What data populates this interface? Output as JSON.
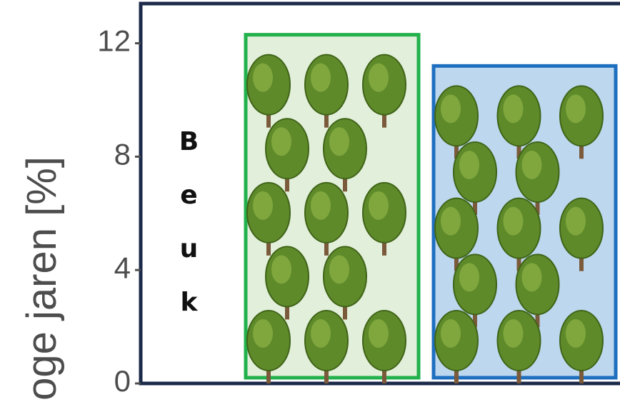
{
  "chart_data": {
    "type": "bar",
    "y_label": "oge jaren [%]",
    "annotation": "Beuk",
    "categories": [
      null,
      null
    ],
    "series": [
      {
        "name": null,
        "values": [
          12.3,
          11.2
        ]
      }
    ],
    "colors": [
      {
        "fill": "#e2efda",
        "stroke": "#22b14c"
      },
      {
        "fill": "#bdd7ee",
        "stroke": "#1f6fc0"
      }
    ],
    "ylim": [
      0,
      13.4
    ],
    "yticks": [
      0,
      4,
      8,
      12
    ]
  }
}
